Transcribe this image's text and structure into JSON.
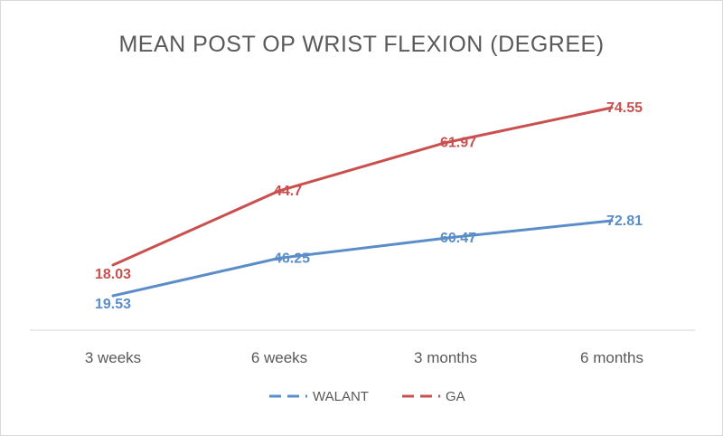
{
  "chart_data": {
    "type": "line",
    "title": "MEAN POST OP WRIST FLEXION (DEGREE)",
    "xlabel": "",
    "ylabel": "",
    "categories": [
      "3 weeks",
      "6 weeks",
      "3 months",
      "6 months"
    ],
    "series": [
      {
        "name": "WALANT",
        "color": "#5b8ec9",
        "values": [
          19.53,
          46.25,
          60.47,
          72.81
        ]
      },
      {
        "name": "GA",
        "color": "#c9504e",
        "values": [
          18.03,
          44.7,
          61.97,
          74.55
        ]
      }
    ],
    "data_labels": true,
    "gridlines": false,
    "legend": "bottom"
  }
}
